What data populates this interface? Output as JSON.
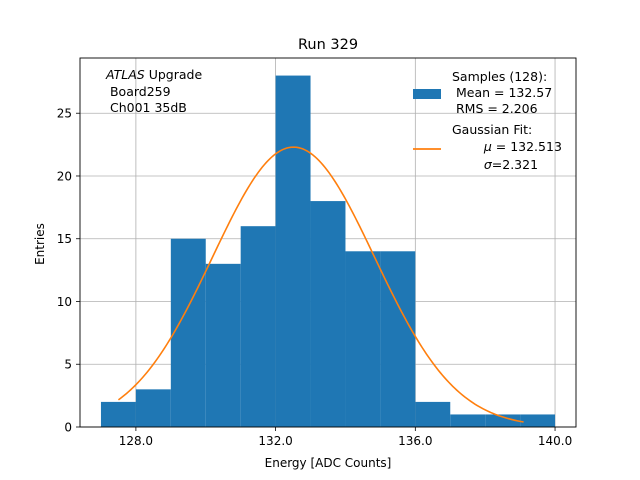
{
  "chart_data": {
    "type": "bar",
    "title": "Run 329",
    "xlabel": "Energy [ADC Counts]",
    "ylabel": "Entries",
    "xlim": [
      126.4,
      140.6
    ],
    "ylim": [
      0,
      29.4
    ],
    "xticks": [
      128,
      132,
      136,
      140
    ],
    "xtick_labels": [
      "128.0",
      "132.0",
      "136.0",
      "140.0"
    ],
    "yticks": [
      0,
      5,
      10,
      15,
      20,
      25
    ],
    "ytick_labels": [
      "0",
      "5",
      "10",
      "15",
      "20",
      "25"
    ],
    "grid": true,
    "bin_edges": [
      127,
      128,
      129,
      130,
      131,
      132,
      133,
      134,
      135,
      136,
      137,
      138,
      139,
      140
    ],
    "values": [
      2,
      3,
      15,
      13,
      16,
      28,
      18,
      14,
      14,
      2,
      1,
      1,
      1
    ],
    "bar_color": "#1f77b4",
    "fit": {
      "type": "gaussian",
      "mu": 132.513,
      "sigma": 2.321,
      "amplitude": 22.3,
      "x_range": [
        127.5,
        139.1
      ],
      "color": "#ff7f0e"
    },
    "annotation": {
      "line1_italic": "ATLAS",
      "line1_rest": " Upgrade",
      "line2": " Board259",
      "line3": " Ch001 35dB"
    },
    "legend": {
      "position": "top-right",
      "samples_title": "Samples (128):",
      "samples_mean": " Mean = 132.57",
      "samples_rms": " RMS = 2.206",
      "fit_title": "Gaussian Fit:",
      "fit_mu_symbol": "μ",
      "fit_mu_value": " = 132.513",
      "fit_sigma_symbol": "σ",
      "fit_sigma_value": "=2.321"
    }
  }
}
